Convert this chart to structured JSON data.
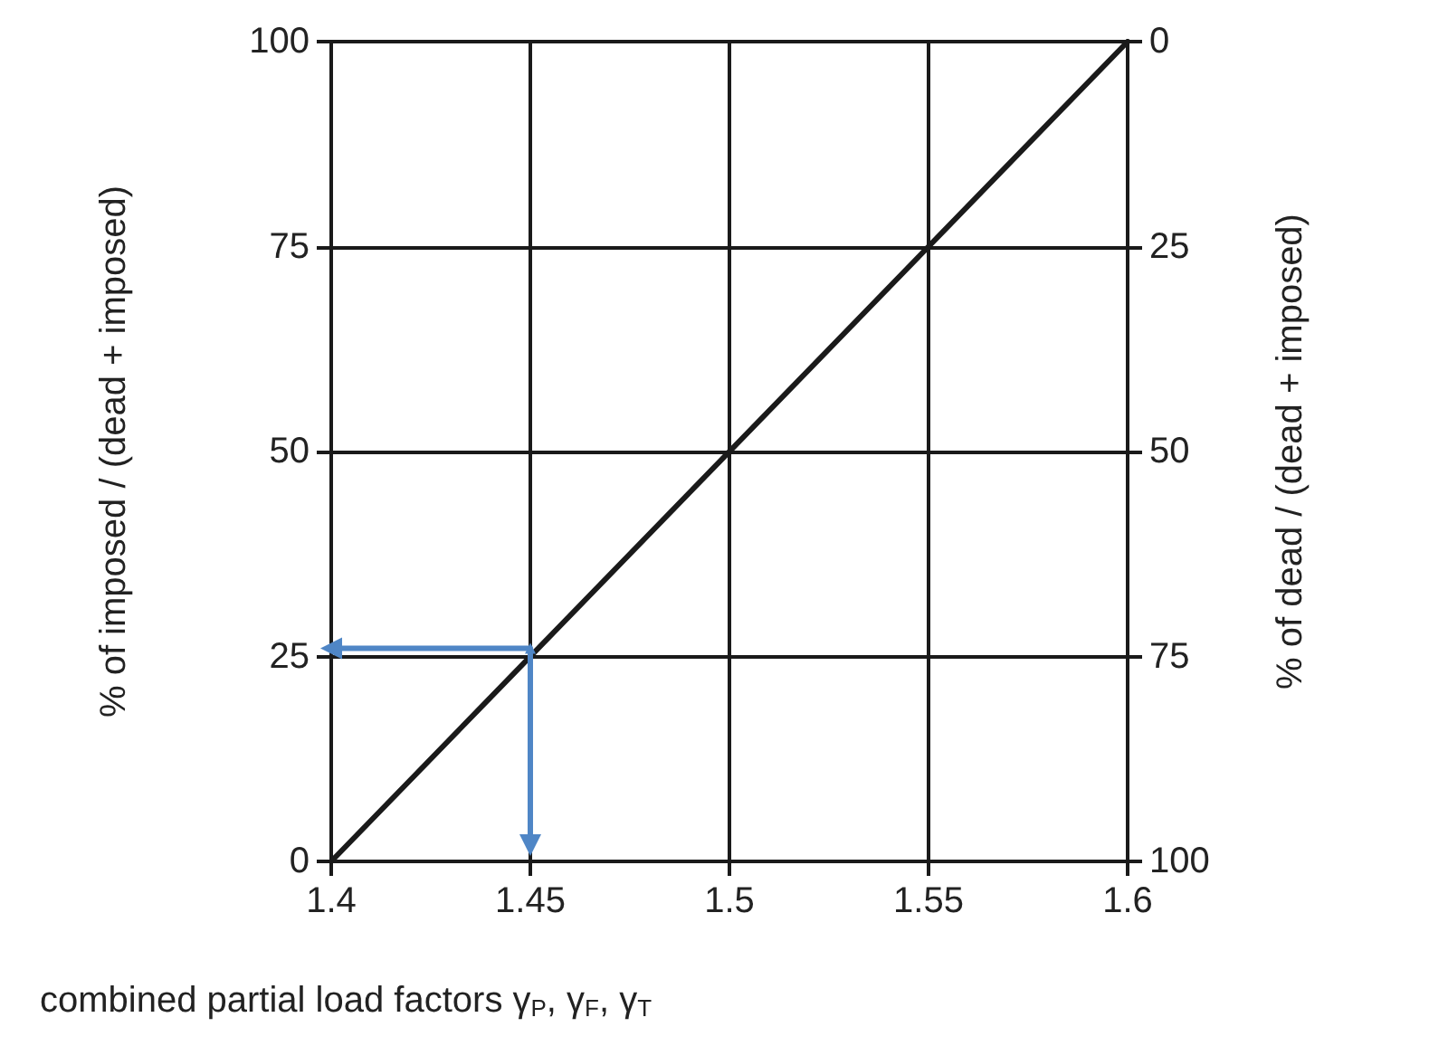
{
  "chart_data": {
    "type": "line",
    "xlabel": "combined partial load factors γ$_{P}$, γ$_{F}$, γ$_{T}$",
    "ylabel": "% of imposed / (dead + imposed)",
    "y2label": "% of dead / (dead + imposed)",
    "xlim": [
      1.4,
      1.6
    ],
    "xticks": [
      1.4,
      1.45,
      1.5,
      1.55,
      1.6
    ],
    "ylim": [
      0,
      100
    ],
    "yticks": [
      0,
      25,
      50,
      75,
      100
    ],
    "y2lim": [
      100,
      0
    ],
    "y2ticks": [
      0,
      25,
      50,
      75,
      100
    ],
    "grid": true,
    "series": [
      {
        "color": "#1a1a1a",
        "x": [
          1.4,
          1.6
        ],
        "values": [
          0,
          100
        ],
        "marker": "none"
      },
      {
        "color": "#4f86c6",
        "x": [
          1.4,
          1.45,
          1.45
        ],
        "values": [
          26,
          26,
          2
        ],
        "marker": "triangle"
      }
    ]
  }
}
